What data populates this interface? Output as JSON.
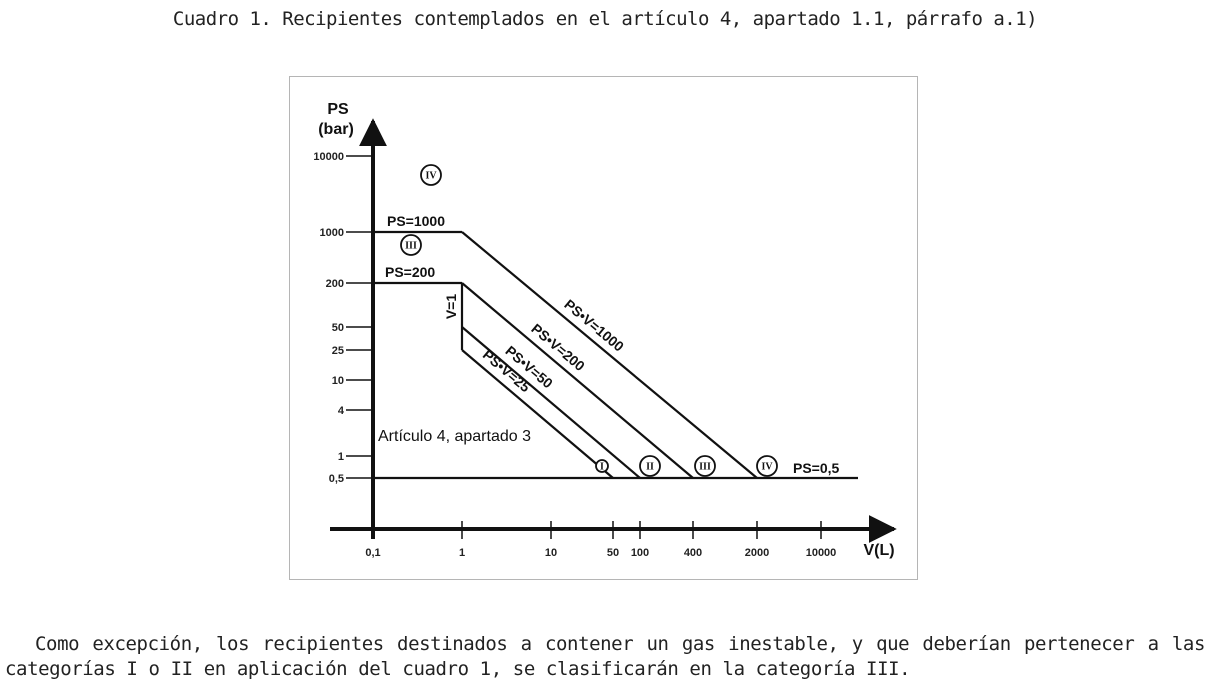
{
  "caption": "Cuadro 1. Recipientes contemplados en el artículo 4, apartado 1.1, párrafo a.1)",
  "paragraph": "Como excepción, los recipientes destinados a contener un gas inestable, y que deberían pertenecer a las categorías I o II en aplicación del cuadro 1, se clasificarán en la categoría III.",
  "chart_data": {
    "type": "line",
    "y_axis": {
      "title": [
        "PS",
        "(bar)"
      ],
      "scale": "log",
      "ticks": [
        "10000",
        "1000",
        "200",
        "50",
        "25",
        "10",
        "4",
        "1",
        "0,5"
      ]
    },
    "x_axis": {
      "title": "V(L)",
      "scale": "log",
      "ticks": [
        "0,1",
        "1",
        "10",
        "50",
        "100",
        "400",
        "2000",
        "10000"
      ]
    },
    "boundaries": [
      {
        "label": "PS=1000",
        "points": [
          [
            0.1,
            1000
          ],
          [
            1,
            1000
          ]
        ]
      },
      {
        "label": "PS=200",
        "points": [
          [
            0.1,
            200
          ],
          [
            1,
            200
          ]
        ]
      },
      {
        "label": "V=1",
        "points": [
          [
            1,
            25
          ],
          [
            1,
            200
          ]
        ]
      },
      {
        "label": "PS•V=1000",
        "points": [
          [
            1,
            1000
          ],
          [
            2000,
            0.5
          ]
        ]
      },
      {
        "label": "PS•V=200",
        "points": [
          [
            1,
            200
          ],
          [
            400,
            0.5
          ]
        ]
      },
      {
        "label": "PS•V=50",
        "points": [
          [
            1,
            50
          ],
          [
            100,
            0.5
          ]
        ]
      },
      {
        "label": "PS•V=25",
        "points": [
          [
            1,
            25
          ],
          [
            50,
            0.5
          ]
        ]
      },
      {
        "label": "PS=0,5",
        "points": [
          [
            0.1,
            0.5
          ],
          [
            100000,
            0.5
          ]
        ]
      }
    ],
    "region_label": "Artículo 4, apartado 3",
    "categories": [
      {
        "label": "IV",
        "at": [
          0.5,
          5000
        ]
      },
      {
        "label": "III",
        "at": [
          0.5,
          700
        ]
      },
      {
        "label": "I",
        "at": [
          50,
          0.75
        ]
      },
      {
        "label": "II",
        "at": [
          100,
          0.75
        ]
      },
      {
        "label": "III",
        "at": [
          400,
          0.75
        ]
      },
      {
        "label": "IV",
        "at": [
          2000,
          0.75
        ]
      }
    ]
  }
}
